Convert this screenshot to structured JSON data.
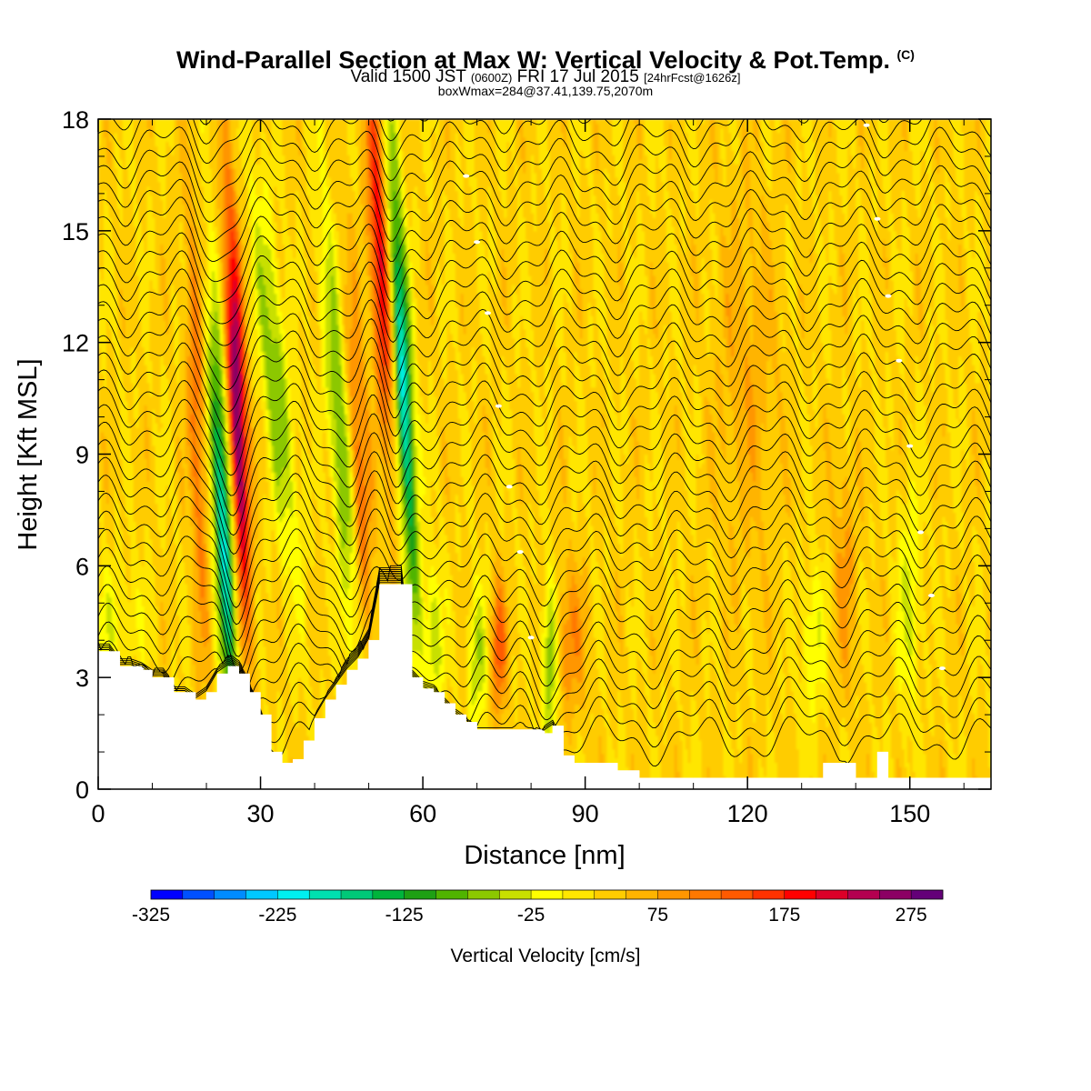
{
  "title": "Wind-Parallel Section at Max W: Vertical Velocity & Pot.Temp.",
  "title_suffix": "(C)",
  "subtitle": {
    "part1": "Valid 1500 JST ",
    "part2": "(0600Z)",
    "part3": " FRI 17 Jul 2015 ",
    "part4": "[24hrFcst@1626z]"
  },
  "subtitle2": "boxWmax=284@37.41,139.75,2070m",
  "chart_data": {
    "type": "heatmap",
    "title": "Wind-Parallel Section at Max W: Vertical Velocity & Pot.Temp.",
    "xlabel": "Distance [nm]",
    "ylabel": "Height [Kft MSL]",
    "xlim": [
      0,
      165
    ],
    "ylim": [
      0,
      18
    ],
    "x_ticks": [
      0,
      30,
      60,
      90,
      120,
      150
    ],
    "y_ticks": [
      0,
      3,
      6,
      9,
      12,
      15,
      18
    ],
    "colorbar": {
      "title": "Vertical Velocity [cm/s]",
      "min": -325,
      "max": 275,
      "step": 25,
      "labels": [
        "-325",
        "-225",
        "-125",
        "-25",
        "75",
        "175",
        "275"
      ],
      "colors": [
        "#0000ff",
        "#0050ff",
        "#008cff",
        "#00c8ff",
        "#00f0f0",
        "#00e0b0",
        "#00c878",
        "#00b43c",
        "#1ea014",
        "#50b400",
        "#8cc800",
        "#c8e000",
        "#ffff00",
        "#ffe600",
        "#ffcc00",
        "#ffb400",
        "#ff9600",
        "#ff7800",
        "#ff5a00",
        "#ff3200",
        "#ff0000",
        "#dc0028",
        "#b40050",
        "#8c0064",
        "#640078"
      ]
    },
    "updrafts": [
      {
        "x": 26,
        "peak": 275
      },
      {
        "x": 54,
        "peak": 180
      },
      {
        "x": 74,
        "peak": 120
      },
      {
        "x": 86,
        "peak": 60
      }
    ],
    "downdrafts": [
      {
        "x": 23,
        "peak": -225
      },
      {
        "x": 57,
        "peak": -250
      },
      {
        "x": 46,
        "peak": -100
      },
      {
        "x": 84,
        "peak": -125
      }
    ],
    "terrain_kft": [
      [
        0,
        3.7
      ],
      [
        2,
        3.7
      ],
      [
        4,
        3.3
      ],
      [
        6,
        3.3
      ],
      [
        8,
        3.2
      ],
      [
        10,
        3.0
      ],
      [
        12,
        3.0
      ],
      [
        14,
        2.6
      ],
      [
        16,
        2.6
      ],
      [
        18,
        2.4
      ],
      [
        20,
        2.6
      ],
      [
        22,
        3.1
      ],
      [
        24,
        3.3
      ],
      [
        26,
        3.1
      ],
      [
        28,
        2.6
      ],
      [
        30,
        2.0
      ],
      [
        32,
        1.0
      ],
      [
        34,
        0.7
      ],
      [
        36,
        0.8
      ],
      [
        38,
        1.3
      ],
      [
        40,
        1.9
      ],
      [
        42,
        2.4
      ],
      [
        44,
        2.8
      ],
      [
        46,
        3.2
      ],
      [
        48,
        3.5
      ],
      [
        50,
        4.0
      ],
      [
        52,
        5.5
      ],
      [
        54,
        5.5
      ],
      [
        56,
        5.5
      ],
      [
        58,
        3.0
      ],
      [
        60,
        2.7
      ],
      [
        62,
        2.6
      ],
      [
        64,
        2.3
      ],
      [
        66,
        2.0
      ],
      [
        68,
        1.8
      ],
      [
        70,
        1.6
      ],
      [
        72,
        1.6
      ],
      [
        74,
        1.6
      ],
      [
        76,
        1.6
      ],
      [
        78,
        1.6
      ],
      [
        80,
        1.6
      ],
      [
        82,
        1.5
      ],
      [
        84,
        1.7
      ],
      [
        86,
        0.9
      ],
      [
        88,
        0.7
      ],
      [
        90,
        0.7
      ],
      [
        92,
        0.7
      ],
      [
        94,
        0.7
      ],
      [
        96,
        0.5
      ],
      [
        98,
        0.5
      ],
      [
        100,
        0.3
      ],
      [
        110,
        0.3
      ],
      [
        120,
        0.3
      ],
      [
        130,
        0.3
      ],
      [
        132,
        0.3
      ],
      [
        134,
        0.7
      ],
      [
        138,
        0.7
      ],
      [
        140,
        0.3
      ],
      [
        142,
        0.3
      ],
      [
        144,
        1.0
      ],
      [
        146,
        0.3
      ],
      [
        165,
        0.3
      ]
    ]
  }
}
